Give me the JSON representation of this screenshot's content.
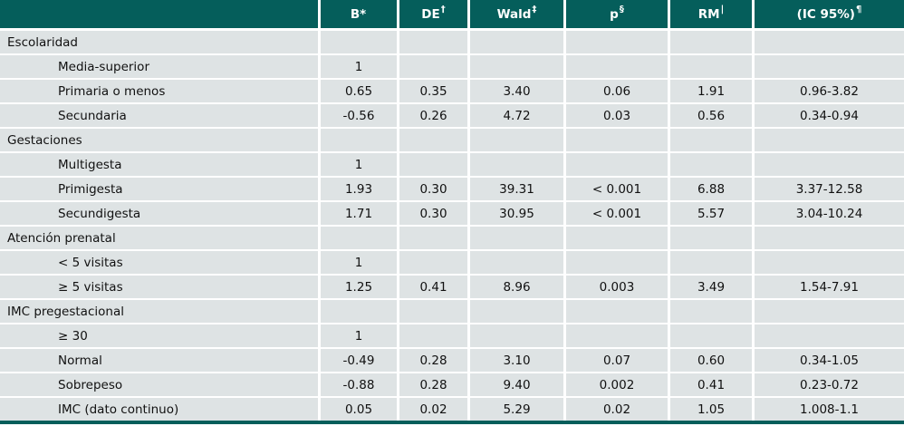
{
  "colors": {
    "header_bg": "#055e5b",
    "row_bg": "#dee3e4",
    "separator": "#ffffff",
    "text": "#111111",
    "header_text": "#ffffff"
  },
  "table": {
    "columns": [
      {
        "label": "",
        "sup": ""
      },
      {
        "label": "B*",
        "sup": ""
      },
      {
        "label": "DE",
        "sup": "†"
      },
      {
        "label": "Wald",
        "sup": "‡"
      },
      {
        "label": "p",
        "sup": "§"
      },
      {
        "label": "RM",
        "sup": "|"
      },
      {
        "label": "(IC 95%)",
        "sup": "¶"
      }
    ],
    "rows": [
      {
        "label": "Escolaridad",
        "level": "group",
        "values": [
          "",
          "",
          "",
          "",
          "",
          ""
        ]
      },
      {
        "label": "Media-superior",
        "level": "item",
        "values": [
          "1",
          "",
          "",
          "",
          "",
          ""
        ]
      },
      {
        "label": "Primaria o menos",
        "level": "item",
        "values": [
          "0.65",
          "0.35",
          "3.40",
          "0.06",
          "1.91",
          "0.96-3.82"
        ]
      },
      {
        "label": "Secundaria",
        "level": "item",
        "values": [
          "-0.56",
          "0.26",
          "4.72",
          "0.03",
          "0.56",
          "0.34-0.94"
        ]
      },
      {
        "label": "Gestaciones",
        "level": "group",
        "values": [
          "",
          "",
          "",
          "",
          "",
          ""
        ]
      },
      {
        "label": "Multigesta",
        "level": "item",
        "values": [
          "1",
          "",
          "",
          "",
          "",
          ""
        ]
      },
      {
        "label": "Primigesta",
        "level": "item",
        "values": [
          "1.93",
          "0.30",
          "39.31",
          "< 0.001",
          "6.88",
          "3.37-12.58"
        ]
      },
      {
        "label": "Secundigesta",
        "level": "item",
        "values": [
          "1.71",
          "0.30",
          "30.95",
          "< 0.001",
          "5.57",
          "3.04-10.24"
        ]
      },
      {
        "label": "Atención prenatal",
        "level": "group",
        "values": [
          "",
          "",
          "",
          "",
          "",
          ""
        ]
      },
      {
        "label": "< 5 visitas",
        "level": "item",
        "values": [
          "1",
          "",
          "",
          "",
          "",
          ""
        ]
      },
      {
        "label": "≥ 5 visitas",
        "level": "item",
        "values": [
          "1.25",
          "0.41",
          "8.96",
          "0.003",
          "3.49",
          "1.54-7.91"
        ]
      },
      {
        "label": "IMC pregestacional",
        "level": "group",
        "values": [
          "",
          "",
          "",
          "",
          "",
          ""
        ]
      },
      {
        "label": "≥ 30",
        "level": "item",
        "values": [
          "1",
          "",
          "",
          "",
          "",
          ""
        ]
      },
      {
        "label": "Normal",
        "level": "item",
        "values": [
          "-0.49",
          "0.28",
          "3.10",
          "0.07",
          "0.60",
          "0.34-1.05"
        ]
      },
      {
        "label": "Sobrepeso",
        "level": "item",
        "values": [
          "-0.88",
          "0.28",
          "9.40",
          "0.002",
          "0.41",
          "0.23-0.72"
        ]
      },
      {
        "label": "IMC (dato continuo)",
        "level": "item",
        "values": [
          "0.05",
          "0.02",
          "5.29",
          "0.02",
          "1.05",
          "1.008-1.1"
        ]
      }
    ]
  }
}
